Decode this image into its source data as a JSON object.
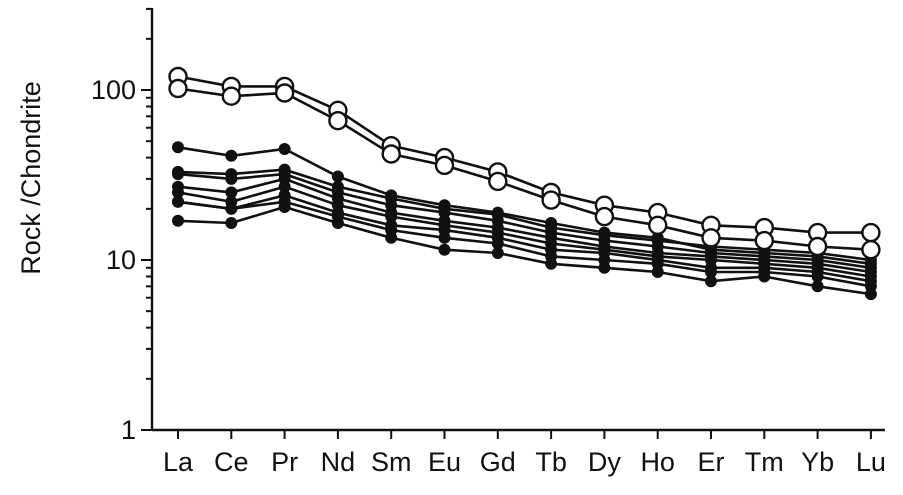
{
  "chart_data": {
    "type": "line",
    "ylabel": "Rock /Chondrite",
    "xlabel": "",
    "yscale": "log",
    "ylim": [
      1,
      300
    ],
    "yticks": [
      1,
      10,
      100
    ],
    "ytick_labels": [
      "1",
      "10",
      "100"
    ],
    "categories": [
      "La",
      "Ce",
      "Pr",
      "Nd",
      "Sm",
      "Eu",
      "Gd",
      "Tb",
      "Dy",
      "Ho",
      "Er",
      "Tm",
      "Yb",
      "Lu"
    ],
    "grid": false,
    "legend": "none",
    "series": [
      {
        "marker": "open-circle",
        "values": [
          120,
          105,
          105,
          76,
          47,
          40,
          33,
          25,
          21,
          19,
          16,
          15.5,
          14.5,
          14.5
        ]
      },
      {
        "marker": "open-circle",
        "values": [
          102,
          92,
          96,
          66,
          42,
          36,
          29,
          22.5,
          18,
          16,
          13.5,
          13,
          12,
          11.5
        ]
      },
      {
        "marker": "filled-circle",
        "values": [
          46,
          41,
          45,
          31,
          24,
          21,
          19,
          16.5,
          14.5,
          13.5,
          11.5,
          11,
          10.5,
          9.5
        ]
      },
      {
        "marker": "filled-circle",
        "values": [
          33,
          32,
          34,
          27,
          23,
          20,
          18.5,
          15.5,
          14,
          13,
          12,
          11.5,
          11,
          10
        ]
      },
      {
        "marker": "filled-circle",
        "values": [
          32,
          30,
          32,
          25,
          21,
          19,
          17,
          14.5,
          13,
          12,
          11,
          10.5,
          10,
          9
        ]
      },
      {
        "marker": "filled-circle",
        "values": [
          27,
          25,
          30,
          23,
          19,
          17,
          15.5,
          13.5,
          12,
          11,
          10.5,
          10,
          9.5,
          8.5
        ]
      },
      {
        "marker": "filled-circle",
        "values": [
          25,
          22,
          27,
          21,
          18,
          16,
          14.5,
          12.5,
          11.5,
          10.5,
          10,
          9.5,
          9,
          8
        ]
      },
      {
        "marker": "filled-circle",
        "values": [
          22,
          20,
          24,
          19,
          16,
          15,
          13.5,
          11.5,
          11,
          10,
          9,
          9,
          8.5,
          7.5
        ]
      },
      {
        "marker": "filled-circle",
        "values": [
          22,
          20,
          22,
          18,
          15,
          13.5,
          12.5,
          10.5,
          10,
          9.5,
          8.5,
          8.5,
          8,
          7
        ]
      },
      {
        "marker": "filled-circle",
        "values": [
          17,
          16.5,
          20.5,
          16.5,
          13.5,
          11.5,
          11,
          9.5,
          9,
          8.5,
          7.5,
          8,
          7,
          6.3
        ]
      }
    ]
  }
}
